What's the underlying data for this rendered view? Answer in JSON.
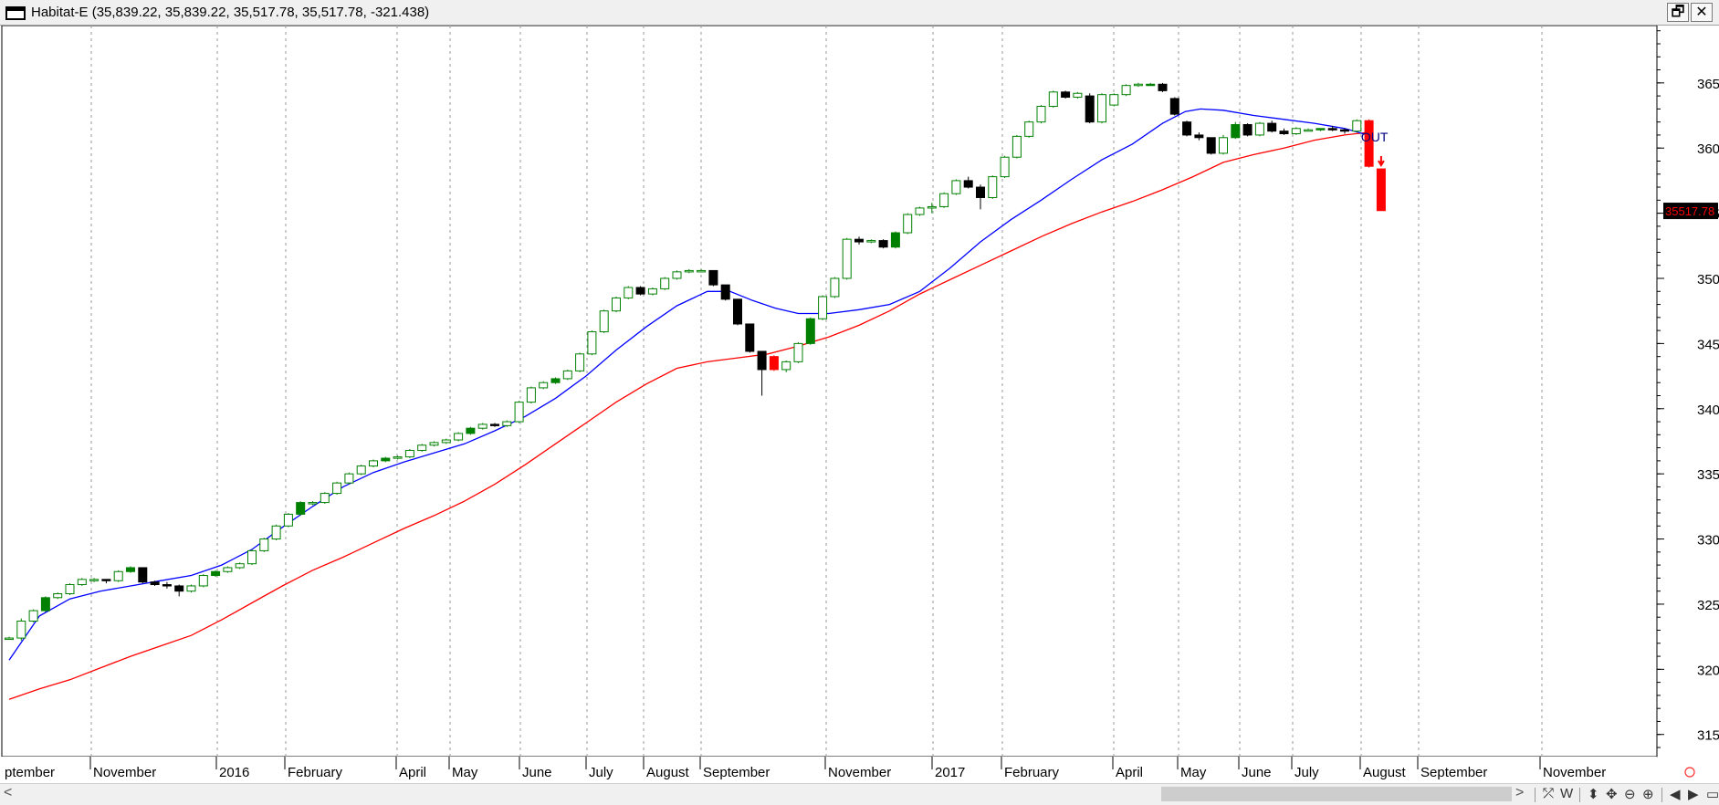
{
  "window": {
    "title": "Habitat-E (35,839.22, 35,839.22, 35,517.78, 35,517.78, -321.438)",
    "restore_glyph": "🗗",
    "close_glyph": "✕"
  },
  "chart_data": {
    "type": "candlestick",
    "title": "Habitat-E (35,839.22, 35,839.22, 35,517.78, 35,517.78, -321.438)",
    "ylim": [
      31330,
      36940
    ],
    "y_ticks": [
      31500,
      32000,
      32500,
      33000,
      33500,
      34000,
      34500,
      35000,
      35500,
      36000,
      36500
    ],
    "last_value_label": "35517.78",
    "signal_label": "OUT",
    "x_labels": [
      "ptember",
      "November",
      "2016",
      "February",
      "April",
      "May",
      "June",
      "July",
      "August",
      "September",
      "November",
      "2017",
      "February",
      "April",
      "May",
      "June",
      "July",
      "August",
      "September",
      "November"
    ],
    "grid": "vertical dotted",
    "colors": {
      "up": "#008000",
      "down": "#000000",
      "signal": "#ff0000",
      "fast_ma": "#0000ff",
      "slow_ma": "#ff0000"
    },
    "series": [
      {
        "type": "candles",
        "values": [
          [
            32240,
            32250,
            32230,
            32240
          ],
          [
            32240,
            32390,
            32220,
            32370
          ],
          [
            32370,
            32460,
            32360,
            32450
          ],
          [
            32450,
            32560,
            32440,
            32550
          ],
          [
            32550,
            32590,
            32540,
            32580
          ],
          [
            32580,
            32660,
            32570,
            32650
          ],
          [
            32650,
            32700,
            32640,
            32690
          ],
          [
            32690,
            32700,
            32670,
            32690
          ],
          [
            32690,
            32690,
            32660,
            32680
          ],
          [
            32680,
            32760,
            32670,
            32750
          ],
          [
            32750,
            32790,
            32740,
            32780
          ],
          [
            32780,
            32780,
            32660,
            32670
          ],
          [
            32670,
            32680,
            32640,
            32650
          ],
          [
            32650,
            32670,
            32620,
            32640
          ],
          [
            32640,
            32650,
            32560,
            32600
          ],
          [
            32600,
            32650,
            32590,
            32640
          ],
          [
            32640,
            32730,
            32630,
            32720
          ],
          [
            32720,
            32760,
            32710,
            32750
          ],
          [
            32750,
            32790,
            32740,
            32780
          ],
          [
            32780,
            32820,
            32770,
            32810
          ],
          [
            32810,
            32920,
            32800,
            32910
          ],
          [
            32910,
            33010,
            32900,
            33000
          ],
          [
            33000,
            33110,
            32990,
            33100
          ],
          [
            33100,
            33200,
            33090,
            33190
          ],
          [
            33190,
            33290,
            33180,
            33280
          ],
          [
            33280,
            33290,
            33260,
            33280
          ],
          [
            33280,
            33360,
            33270,
            33350
          ],
          [
            33350,
            33440,
            33340,
            33430
          ],
          [
            33430,
            33510,
            33420,
            33500
          ],
          [
            33500,
            33570,
            33490,
            33560
          ],
          [
            33560,
            33610,
            33550,
            33600
          ],
          [
            33600,
            33630,
            33590,
            33620
          ],
          [
            33620,
            33640,
            33610,
            33630
          ],
          [
            33630,
            33690,
            33620,
            33680
          ],
          [
            33680,
            33730,
            33670,
            33720
          ],
          [
            33720,
            33750,
            33710,
            33740
          ],
          [
            33740,
            33770,
            33730,
            33760
          ],
          [
            33760,
            33820,
            33750,
            33810
          ],
          [
            33810,
            33860,
            33800,
            33850
          ],
          [
            33850,
            33890,
            33840,
            33880
          ],
          [
            33880,
            33890,
            33860,
            33870
          ],
          [
            33870,
            33910,
            33860,
            33900
          ],
          [
            33900,
            34060,
            33890,
            34050
          ],
          [
            34050,
            34170,
            34040,
            34160
          ],
          [
            34160,
            34210,
            34150,
            34200
          ],
          [
            34200,
            34240,
            34190,
            34230
          ],
          [
            34230,
            34300,
            34220,
            34290
          ],
          [
            34290,
            34430,
            34280,
            34420
          ],
          [
            34420,
            34600,
            34410,
            34590
          ],
          [
            34590,
            34760,
            34580,
            34750
          ],
          [
            34750,
            34860,
            34740,
            34850
          ],
          [
            34850,
            34940,
            34840,
            34930
          ],
          [
            34930,
            34940,
            34870,
            34880
          ],
          [
            34880,
            34930,
            34870,
            34920
          ],
          [
            34920,
            35010,
            34910,
            35000
          ],
          [
            35000,
            35060,
            34990,
            35050
          ],
          [
            35050,
            35070,
            35040,
            35060
          ],
          [
            35060,
            35070,
            35050,
            35060
          ],
          [
            35060,
            35060,
            34940,
            34950
          ],
          [
            34950,
            34950,
            34830,
            34840
          ],
          [
            34840,
            34840,
            34640,
            34650
          ],
          [
            34650,
            34650,
            34430,
            34440
          ],
          [
            34440,
            34440,
            34100,
            34300
          ],
          [
            34300,
            34410,
            34290,
            34400
          ],
          [
            34300,
            34370,
            34280,
            34360
          ],
          [
            34360,
            34510,
            34350,
            34500
          ],
          [
            34500,
            34700,
            34490,
            34690
          ],
          [
            34690,
            34870,
            34680,
            34860
          ],
          [
            34860,
            35010,
            34850,
            35000
          ],
          [
            35000,
            35310,
            34990,
            35300
          ],
          [
            35300,
            35320,
            35260,
            35280
          ],
          [
            35280,
            35300,
            35270,
            35290
          ],
          [
            35290,
            35300,
            35230,
            35240
          ],
          [
            35240,
            35360,
            35230,
            35350
          ],
          [
            35350,
            35500,
            35340,
            35490
          ],
          [
            35490,
            35550,
            35480,
            35540
          ],
          [
            35540,
            35580,
            35500,
            35550
          ],
          [
            35550,
            35660,
            35540,
            35650
          ],
          [
            35650,
            35760,
            35640,
            35750
          ],
          [
            35750,
            35780,
            35690,
            35700
          ],
          [
            35700,
            35720,
            35530,
            35620
          ],
          [
            35620,
            35790,
            35610,
            35780
          ],
          [
            35780,
            35940,
            35770,
            35930
          ],
          [
            35930,
            36100,
            35920,
            36090
          ],
          [
            36090,
            36210,
            36080,
            36200
          ],
          [
            36200,
            36330,
            36190,
            36320
          ],
          [
            36320,
            36440,
            36310,
            36430
          ],
          [
            36430,
            36440,
            36380,
            36390
          ],
          [
            36390,
            36430,
            36380,
            36420
          ],
          [
            36400,
            36420,
            36190,
            36200
          ],
          [
            36200,
            36420,
            36190,
            36410
          ],
          [
            36330,
            36420,
            36320,
            36410
          ],
          [
            36410,
            36490,
            36400,
            36480
          ],
          [
            36480,
            36500,
            36470,
            36490
          ],
          [
            36490,
            36500,
            36480,
            36490
          ],
          [
            36490,
            36500,
            36430,
            36440
          ],
          [
            36380,
            36390,
            36250,
            36260
          ],
          [
            36200,
            36210,
            36090,
            36100
          ],
          [
            36100,
            36120,
            36060,
            36080
          ],
          [
            36080,
            36080,
            35950,
            35960
          ],
          [
            35960,
            36100,
            35950,
            36080
          ],
          [
            36080,
            36200,
            36070,
            36180
          ],
          [
            36180,
            36190,
            36090,
            36100
          ],
          [
            36100,
            36200,
            36090,
            36190
          ],
          [
            36190,
            36210,
            36120,
            36130
          ],
          [
            36130,
            36150,
            36100,
            36110
          ],
          [
            36110,
            36160,
            36100,
            36150
          ],
          [
            36140,
            36150,
            36130,
            36140
          ],
          [
            36140,
            36150,
            36130,
            36150
          ],
          [
            36150,
            36170,
            36130,
            36140
          ],
          [
            36140,
            36150,
            36110,
            36130
          ],
          [
            36130,
            36220,
            36120,
            36210
          ],
          [
            36210,
            36220,
            35850,
            35860
          ],
          [
            35840,
            35840,
            35520,
            35520
          ]
        ]
      },
      {
        "type": "line",
        "role": "fast_ma",
        "values": [
          [
            0,
            32070
          ],
          [
            20,
            32410
          ],
          [
            40,
            32540
          ],
          [
            60,
            32600
          ],
          [
            80,
            32640
          ],
          [
            100,
            32680
          ],
          [
            120,
            32720
          ],
          [
            140,
            32800
          ],
          [
            160,
            32920
          ],
          [
            180,
            33090
          ],
          [
            200,
            33250
          ],
          [
            220,
            33400
          ],
          [
            240,
            33510
          ],
          [
            260,
            33590
          ],
          [
            280,
            33660
          ],
          [
            300,
            33730
          ],
          [
            320,
            33830
          ],
          [
            340,
            33940
          ],
          [
            360,
            34080
          ],
          [
            380,
            34250
          ],
          [
            400,
            34450
          ],
          [
            420,
            34630
          ],
          [
            440,
            34790
          ],
          [
            460,
            34900
          ],
          [
            475,
            34900
          ],
          [
            490,
            34830
          ],
          [
            505,
            34770
          ],
          [
            520,
            34730
          ],
          [
            540,
            34730
          ],
          [
            560,
            34760
          ],
          [
            580,
            34800
          ],
          [
            600,
            34900
          ],
          [
            620,
            35080
          ],
          [
            640,
            35280
          ],
          [
            660,
            35450
          ],
          [
            680,
            35600
          ],
          [
            700,
            35760
          ],
          [
            720,
            35910
          ],
          [
            740,
            36030
          ],
          [
            760,
            36190
          ],
          [
            775,
            36280
          ],
          [
            785,
            36300
          ],
          [
            800,
            36290
          ],
          [
            820,
            36250
          ],
          [
            840,
            36220
          ],
          [
            860,
            36190
          ],
          [
            880,
            36150
          ],
          [
            895,
            36100
          ]
        ]
      },
      {
        "type": "line",
        "role": "slow_ma",
        "values": [
          [
            0,
            31770
          ],
          [
            20,
            31850
          ],
          [
            40,
            31920
          ],
          [
            60,
            32010
          ],
          [
            80,
            32100
          ],
          [
            100,
            32180
          ],
          [
            120,
            32260
          ],
          [
            140,
            32380
          ],
          [
            160,
            32510
          ],
          [
            180,
            32640
          ],
          [
            200,
            32760
          ],
          [
            220,
            32860
          ],
          [
            240,
            32970
          ],
          [
            260,
            33080
          ],
          [
            280,
            33180
          ],
          [
            300,
            33290
          ],
          [
            320,
            33420
          ],
          [
            340,
            33570
          ],
          [
            360,
            33730
          ],
          [
            380,
            33890
          ],
          [
            400,
            34050
          ],
          [
            420,
            34190
          ],
          [
            440,
            34310
          ],
          [
            460,
            34360
          ],
          [
            480,
            34390
          ],
          [
            500,
            34420
          ],
          [
            520,
            34480
          ],
          [
            540,
            34550
          ],
          [
            560,
            34640
          ],
          [
            580,
            34750
          ],
          [
            600,
            34880
          ],
          [
            620,
            34990
          ],
          [
            640,
            35100
          ],
          [
            660,
            35210
          ],
          [
            680,
            35320
          ],
          [
            700,
            35420
          ],
          [
            720,
            35510
          ],
          [
            740,
            35590
          ],
          [
            760,
            35680
          ],
          [
            780,
            35780
          ],
          [
            800,
            35890
          ],
          [
            820,
            35950
          ],
          [
            840,
            36000
          ],
          [
            860,
            36060
          ],
          [
            880,
            36100
          ],
          [
            895,
            36120
          ]
        ]
      }
    ]
  },
  "scrollbar": {
    "left_arrow": "<",
    "right_arrow": ">",
    "tools": [
      "⤱",
      "W",
      "⬍",
      "✥",
      "⊖",
      "⊕",
      "◀",
      "▶",
      "▭"
    ]
  }
}
